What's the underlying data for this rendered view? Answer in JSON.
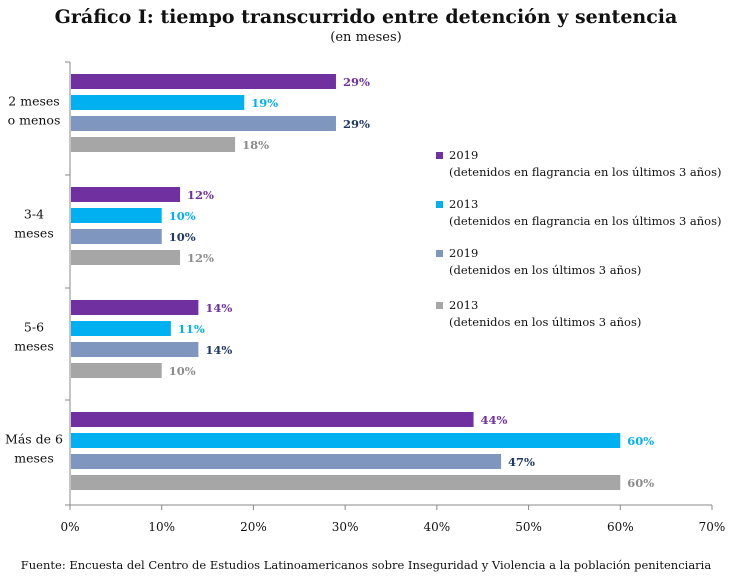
{
  "title": "Gráfico I: tiempo transcurrido entre detención y sentencia",
  "subtitle": "(en meses)",
  "source": "Fuente: Encuesta del Centro de Estudios Latinoamericanos sobre Inseguridad y  Violencia a la población penitenciaria",
  "legend": [
    {
      "line1": "2019",
      "line2": "(detenidos en flagrancia en los últimos 3 años)"
    },
    {
      "line1": "2013",
      "line2": "(detenidos en flagrancia en los últimos 3 años)"
    },
    {
      "line1": "2019",
      "line2": "(detenidos en los últimos 3 años)"
    },
    {
      "line1": "2013",
      "line2": "(detenidos en los últimos 3 años)"
    }
  ],
  "chart_data": {
    "type": "bar",
    "orientation": "horizontal",
    "categories": [
      [
        "2 meses",
        "o menos"
      ],
      [
        "3-4",
        "meses"
      ],
      [
        "5-6",
        "meses"
      ],
      [
        "Más de 6",
        "meses"
      ]
    ],
    "series": [
      {
        "name": "2019 (detenidos en flagrancia en los últimos 3 años)",
        "color": "#7030a0",
        "label_color": "#7030a0",
        "values": [
          29,
          12,
          14,
          44
        ],
        "labels": [
          "29%",
          "12%",
          "14%",
          "44%"
        ]
      },
      {
        "name": "2013 (detenidos en flagrancia en los últimos 3 años)",
        "color": "#00b0f0",
        "label_color": "#00b0f0",
        "values": [
          19,
          10,
          11,
          60
        ],
        "labels": [
          "19%",
          "10%",
          "11%",
          "60%"
        ]
      },
      {
        "name": "2019 (detenidos en los últimos 3 años)",
        "color": "#7f96bf",
        "label_color": "#1f3864",
        "values": [
          29,
          10,
          14,
          47
        ],
        "labels": [
          "29%",
          "10%",
          "14%",
          "47%"
        ]
      },
      {
        "name": "2013 (detenidos en los últimos 3 años)",
        "color": "#a6a6a6",
        "label_color": "#8c8c8c",
        "values": [
          18,
          12,
          10,
          60
        ],
        "labels": [
          "18%",
          "12%",
          "10%",
          "60%"
        ]
      }
    ],
    "xlim": [
      0,
      70
    ],
    "xticks": [
      0,
      10,
      20,
      30,
      40,
      50,
      60,
      70
    ],
    "xtick_labels": [
      "0%",
      "10%",
      "20%",
      "30%",
      "40%",
      "50%",
      "60%",
      "70%"
    ],
    "grid": false,
    "legend_position": "right"
  }
}
